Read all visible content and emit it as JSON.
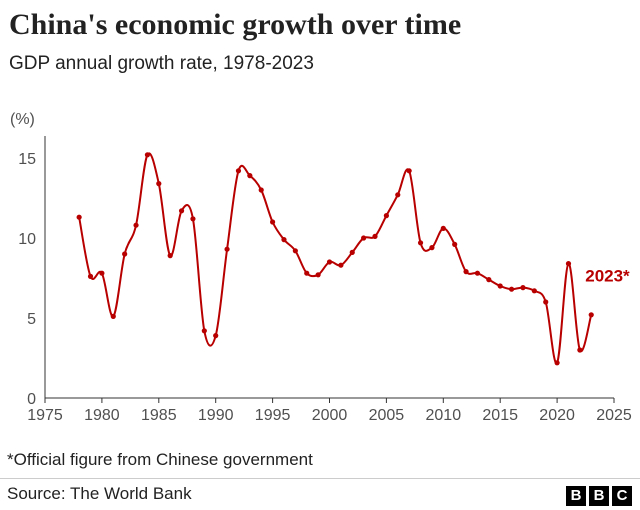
{
  "header": {
    "title": "China's economic growth over time",
    "subtitle": "GDP annual growth rate, 1978-2023"
  },
  "chart_data": {
    "type": "line",
    "title": "China's economic growth over time",
    "subtitle": "GDP annual growth rate, 1978-2023",
    "ylabel": "(%)",
    "xlabel": "",
    "xlim": [
      1975,
      2025
    ],
    "ylim": [
      0,
      15
    ],
    "x_ticks": [
      1975,
      1980,
      1985,
      1990,
      1995,
      2000,
      2005,
      2010,
      2015,
      2020,
      2025
    ],
    "y_ticks": [
      0,
      5,
      10,
      15
    ],
    "grid": false,
    "legend": "none",
    "line_color": "#b80000",
    "series": [
      {
        "x": [
          1978,
          1979,
          1980,
          1981,
          1982,
          1983,
          1984,
          1985,
          1986,
          1987,
          1988,
          1989,
          1990,
          1991,
          1992,
          1993,
          1994,
          1995,
          1996,
          1997,
          1998,
          1999,
          2000,
          2001,
          2002,
          2003,
          2004,
          2005,
          2006,
          2007,
          2008,
          2009,
          2010,
          2011,
          2012,
          2013,
          2014,
          2015,
          2016,
          2017,
          2018,
          2019,
          2020,
          2021,
          2022,
          2023
        ],
        "values": [
          11.3,
          7.6,
          7.8,
          5.1,
          9.0,
          10.8,
          15.2,
          13.4,
          8.9,
          11.7,
          11.2,
          4.2,
          3.9,
          9.3,
          14.2,
          13.9,
          13.0,
          11.0,
          9.9,
          9.2,
          7.8,
          7.7,
          8.5,
          8.3,
          9.1,
          10.0,
          10.1,
          11.4,
          12.7,
          14.2,
          9.7,
          9.4,
          10.6,
          9.6,
          7.9,
          7.8,
          7.4,
          7.0,
          6.8,
          6.9,
          6.7,
          6.0,
          2.2,
          8.4,
          3.0,
          5.2
        ]
      }
    ],
    "annotations": [
      {
        "x": 2023,
        "text": "2023*"
      }
    ]
  },
  "footer": {
    "note": "*Official figure from Chinese government",
    "source": "Source: The World Bank",
    "logo": [
      "B",
      "B",
      "C"
    ]
  }
}
